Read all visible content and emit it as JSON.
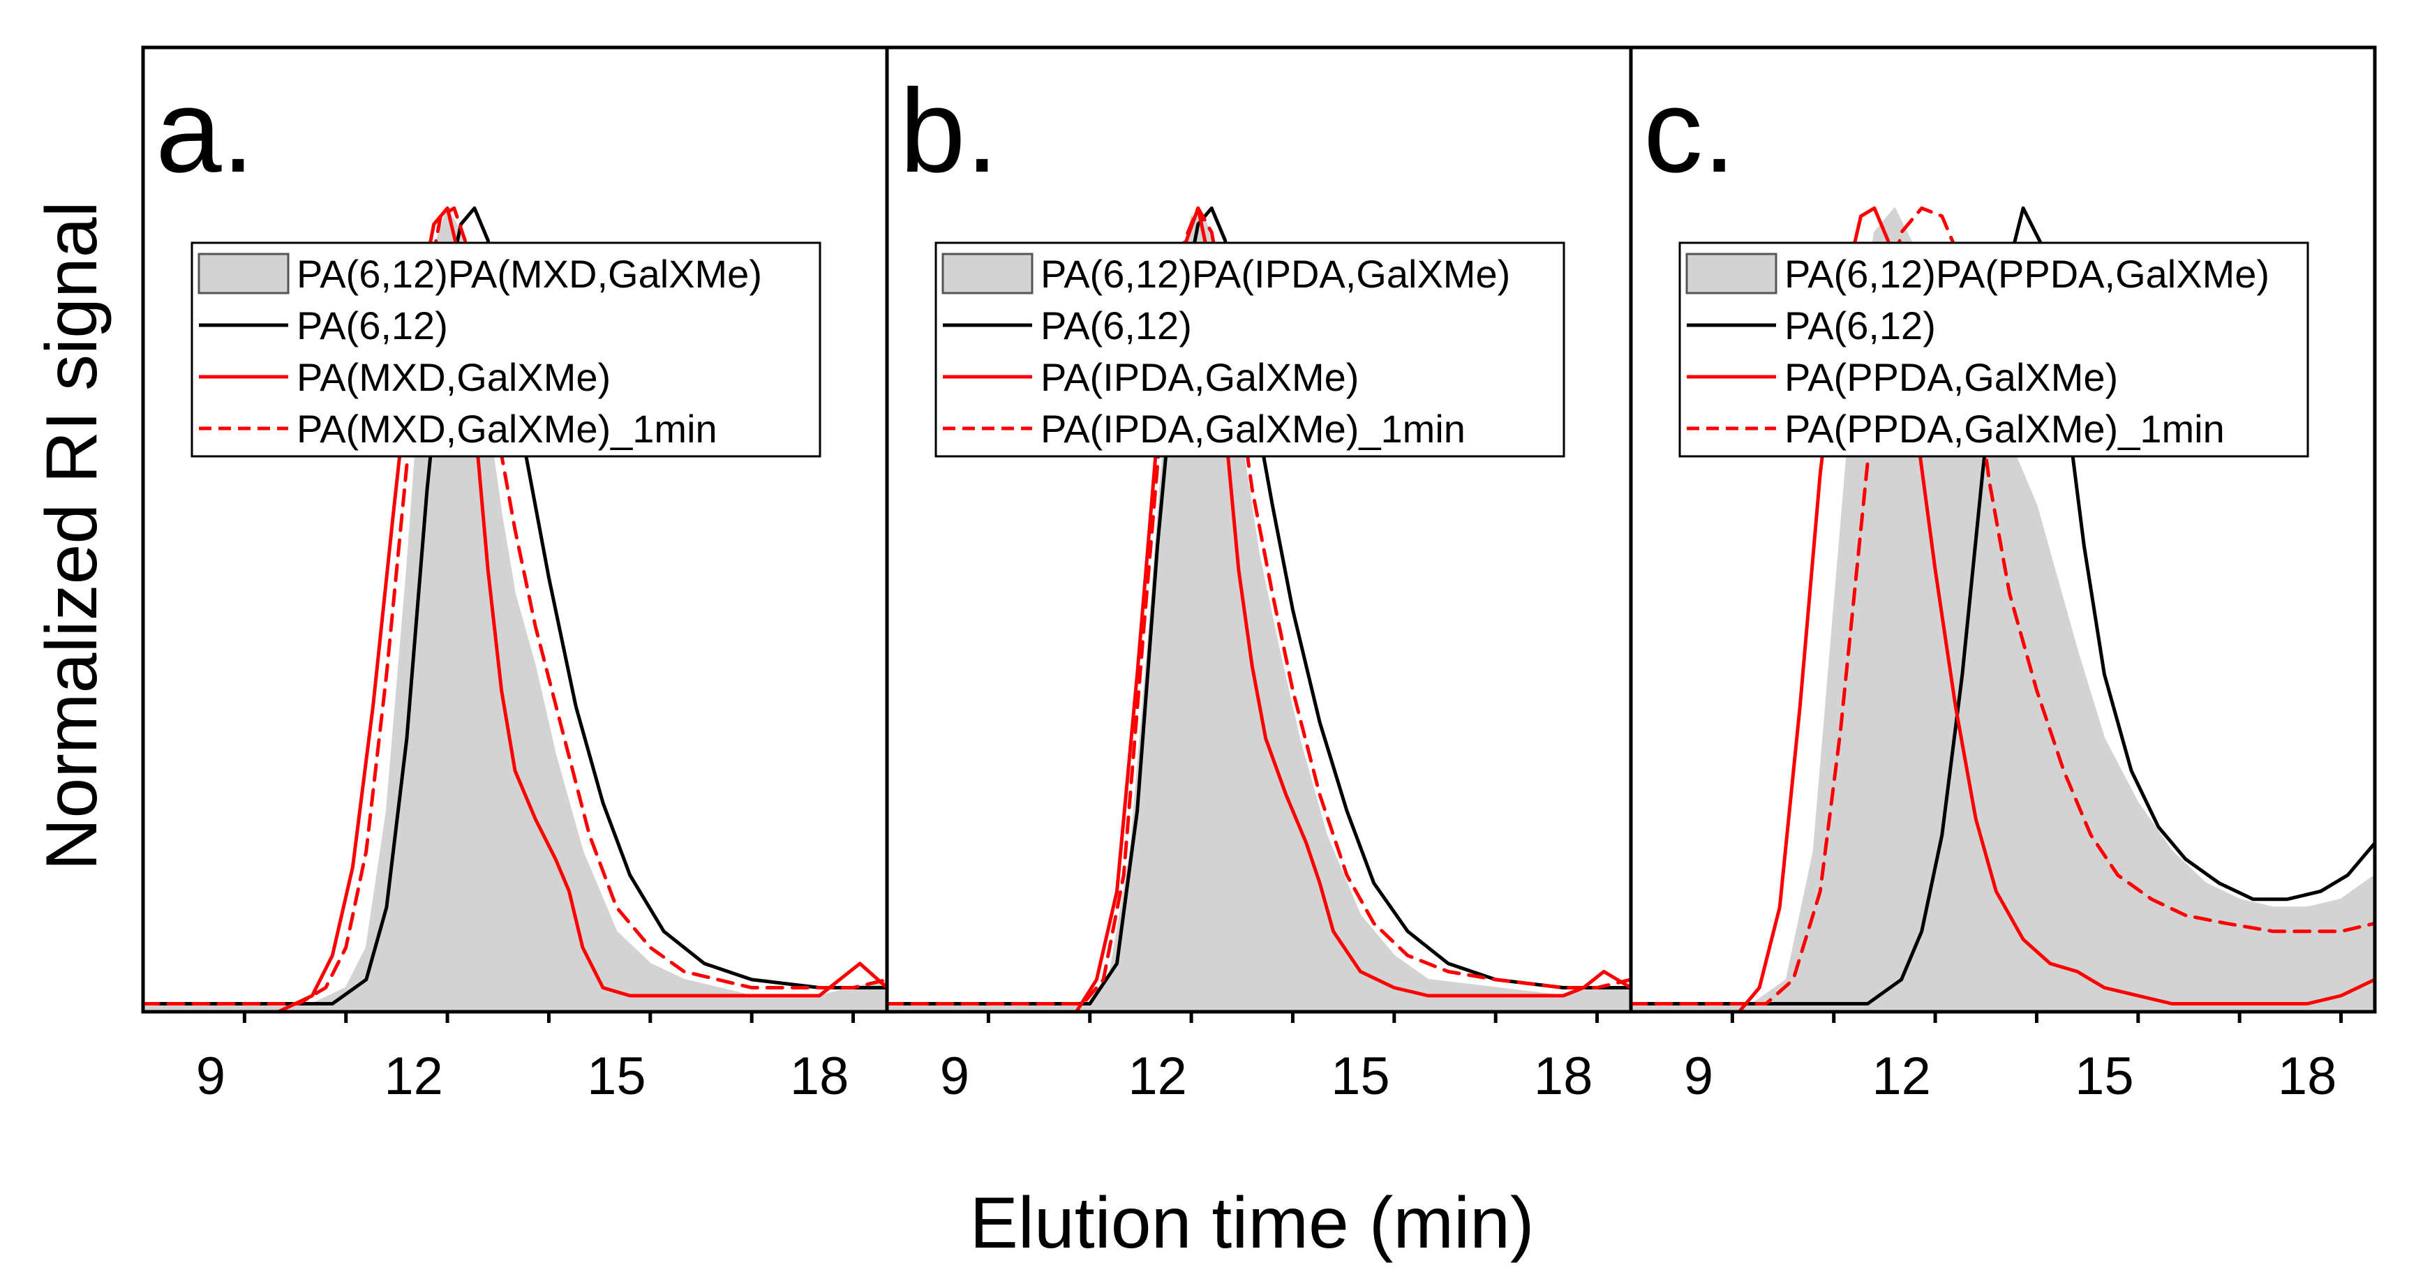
{
  "chart_data": [
    {
      "type": "line",
      "panel_label": "a.",
      "xlabel": "Elution time (min)",
      "ylabel": "Normalized RI signal",
      "xlim": [
        8,
        19
      ],
      "ylim": [
        0,
        1.2
      ],
      "xticks": [
        9,
        12,
        15,
        18
      ],
      "xtick_labels": [
        "9",
        "12",
        "15",
        "18"
      ],
      "legend_position": "upper-center",
      "legend": [
        "PA(6,12)PA(MXD,GalXMe)",
        "PA(6,12)",
        "PA(MXD,GalXMe)",
        "PA(MXD,GalXMe)_1min"
      ],
      "series": [
        {
          "name": "PA(6,12)PA(MXD,GalXMe)",
          "style": "filled-gray",
          "x": [
            8.0,
            10.5,
            11.0,
            11.3,
            11.6,
            11.9,
            12.1,
            12.3,
            12.5,
            12.7,
            12.9,
            13.1,
            13.3,
            13.5,
            13.8,
            14.1,
            14.5,
            15.0,
            15.5,
            16.0,
            17.0,
            18.0,
            18.5,
            19.0
          ],
          "values": [
            0.01,
            0.01,
            0.03,
            0.08,
            0.25,
            0.55,
            0.78,
            0.95,
            1.0,
            0.97,
            0.88,
            0.74,
            0.62,
            0.52,
            0.43,
            0.32,
            0.2,
            0.1,
            0.06,
            0.04,
            0.02,
            0.02,
            0.03,
            0.04
          ]
        },
        {
          "name": "PA(6,12)",
          "style": "black-solid",
          "x": [
            8.0,
            10.8,
            11.3,
            11.6,
            11.9,
            12.2,
            12.5,
            12.7,
            12.9,
            13.1,
            13.3,
            13.6,
            14.0,
            14.4,
            14.8,
            15.2,
            15.7,
            16.3,
            17.0,
            18.0,
            18.5,
            19.0
          ],
          "values": [
            0.01,
            0.01,
            0.04,
            0.13,
            0.34,
            0.65,
            0.9,
            0.98,
            1.0,
            0.96,
            0.87,
            0.72,
            0.54,
            0.38,
            0.26,
            0.17,
            0.1,
            0.06,
            0.04,
            0.03,
            0.03,
            0.03
          ]
        },
        {
          "name": "PA(MXD,GalXMe)",
          "style": "red-solid",
          "x": [
            8.0,
            10.0,
            10.5,
            10.8,
            11.1,
            11.4,
            11.7,
            12.0,
            12.3,
            12.5,
            12.7,
            12.9,
            13.1,
            13.3,
            13.5,
            13.8,
            14.1,
            14.3,
            14.5,
            14.8,
            15.2,
            16.0,
            17.0,
            18.0,
            18.3,
            18.6,
            19.0
          ],
          "values": [
            0.0,
            0.0,
            0.02,
            0.07,
            0.18,
            0.38,
            0.62,
            0.85,
            0.98,
            1.0,
            0.93,
            0.74,
            0.55,
            0.4,
            0.3,
            0.24,
            0.19,
            0.15,
            0.08,
            0.03,
            0.02,
            0.02,
            0.02,
            0.02,
            0.04,
            0.06,
            0.03
          ]
        },
        {
          "name": "PA(MXD,GalXMe)_1min",
          "style": "red-dashed",
          "x": [
            8.0,
            10.3,
            10.7,
            11.0,
            11.3,
            11.6,
            11.9,
            12.2,
            12.4,
            12.6,
            12.8,
            13.0,
            13.2,
            13.5,
            13.8,
            14.2,
            14.6,
            15.0,
            15.5,
            16.0,
            17.0,
            18.0,
            18.5,
            19.0
          ],
          "values": [
            0.01,
            0.01,
            0.03,
            0.08,
            0.2,
            0.42,
            0.68,
            0.9,
            0.99,
            1.0,
            0.95,
            0.85,
            0.74,
            0.6,
            0.48,
            0.35,
            0.22,
            0.13,
            0.08,
            0.05,
            0.03,
            0.03,
            0.03,
            0.04
          ]
        }
      ]
    },
    {
      "type": "line",
      "panel_label": "b.",
      "xlabel": "Elution time (min)",
      "ylabel": "Normalized RI signal",
      "xlim": [
        8,
        19
      ],
      "ylim": [
        0,
        1.2
      ],
      "xticks": [
        9,
        12,
        15,
        18
      ],
      "xtick_labels": [
        "9",
        "12",
        "15",
        "18"
      ],
      "legend_position": "upper-center",
      "legend": [
        "PA(6,12)PA(IPDA,GalXMe)",
        "PA(6,12)",
        "PA(IPDA,GalXMe)",
        "PA(IPDA,GalXMe)_1min"
      ],
      "series": [
        {
          "name": "PA(6,12)PA(IPDA,GalXMe)",
          "style": "filled-gray",
          "x": [
            8.0,
            11.0,
            11.3,
            11.6,
            11.9,
            12.1,
            12.3,
            12.5,
            12.7,
            12.9,
            13.1,
            13.3,
            13.5,
            13.8,
            14.1,
            14.5,
            15.0,
            15.5,
            16.0,
            17.0,
            18.0,
            18.5,
            19.0
          ],
          "values": [
            0.01,
            0.01,
            0.05,
            0.2,
            0.5,
            0.72,
            0.9,
            0.99,
            0.99,
            0.92,
            0.8,
            0.68,
            0.57,
            0.45,
            0.34,
            0.22,
            0.12,
            0.07,
            0.04,
            0.03,
            0.02,
            0.03,
            0.03
          ]
        },
        {
          "name": "PA(6,12)",
          "style": "black-solid",
          "x": [
            8.0,
            11.0,
            11.4,
            11.7,
            12.0,
            12.3,
            12.6,
            12.8,
            13.0,
            13.2,
            13.4,
            13.7,
            14.0,
            14.4,
            14.8,
            15.2,
            15.7,
            16.3,
            17.0,
            18.0,
            18.5,
            19.0
          ],
          "values": [
            0.01,
            0.01,
            0.06,
            0.25,
            0.58,
            0.85,
            0.98,
            1.0,
            0.96,
            0.88,
            0.77,
            0.63,
            0.5,
            0.36,
            0.25,
            0.16,
            0.1,
            0.06,
            0.04,
            0.03,
            0.03,
            0.03
          ]
        },
        {
          "name": "PA(IPDA,GalXMe)",
          "style": "red-solid",
          "x": [
            8.0,
            10.8,
            11.1,
            11.4,
            11.7,
            12.0,
            12.3,
            12.6,
            12.8,
            13.0,
            13.2,
            13.4,
            13.6,
            13.9,
            14.2,
            14.4,
            14.6,
            15.0,
            15.5,
            16.0,
            17.0,
            18.0,
            18.3,
            18.6,
            19.0
          ],
          "values": [
            0.0,
            0.0,
            0.04,
            0.15,
            0.42,
            0.72,
            0.93,
            1.0,
            0.92,
            0.73,
            0.55,
            0.43,
            0.34,
            0.27,
            0.21,
            0.16,
            0.1,
            0.05,
            0.03,
            0.02,
            0.02,
            0.02,
            0.03,
            0.05,
            0.03
          ]
        },
        {
          "name": "PA(IPDA,GalXMe)_1min",
          "style": "red-dashed",
          "x": [
            8.0,
            10.9,
            11.2,
            11.5,
            11.8,
            12.1,
            12.4,
            12.6,
            12.8,
            13.0,
            13.2,
            13.4,
            13.7,
            14.0,
            14.4,
            14.8,
            15.2,
            15.7,
            16.3,
            17.0,
            18.0,
            18.5,
            19.0
          ],
          "values": [
            0.01,
            0.01,
            0.04,
            0.17,
            0.48,
            0.78,
            0.96,
            1.0,
            0.97,
            0.88,
            0.77,
            0.65,
            0.52,
            0.4,
            0.27,
            0.17,
            0.11,
            0.07,
            0.05,
            0.04,
            0.03,
            0.03,
            0.04
          ]
        }
      ]
    },
    {
      "type": "line",
      "panel_label": "c.",
      "xlabel": "Elution time (min)",
      "ylabel": "Normalized RI signal",
      "xlim": [
        8,
        19
      ],
      "ylim": [
        0,
        1.2
      ],
      "xticks": [
        9,
        12,
        15,
        18
      ],
      "xtick_labels": [
        "9",
        "12",
        "15",
        "18"
      ],
      "legend_position": "upper-center",
      "legend": [
        "PA(6,12)PA(PPDA,GalXMe)",
        "PA(6,12)",
        "PA(PPDA,GalXMe)",
        "PA(PPDA,GalXMe)_1min"
      ],
      "series": [
        {
          "name": "PA(6,12)PA(PPDA,GalXMe)",
          "style": "filled-gray",
          "x": [
            8.0,
            9.8,
            10.3,
            10.7,
            11.0,
            11.3,
            11.6,
            11.9,
            12.2,
            12.5,
            12.8,
            13.1,
            13.4,
            13.7,
            14.0,
            14.3,
            14.6,
            15.0,
            15.5,
            16.0,
            16.5,
            17.0,
            17.5,
            18.0,
            18.5,
            19.0
          ],
          "values": [
            0.01,
            0.01,
            0.04,
            0.2,
            0.5,
            0.8,
            0.97,
            1.0,
            0.95,
            0.86,
            0.79,
            0.75,
            0.72,
            0.69,
            0.63,
            0.54,
            0.45,
            0.34,
            0.26,
            0.2,
            0.16,
            0.14,
            0.13,
            0.13,
            0.14,
            0.17
          ]
        },
        {
          "name": "PA(6,12)",
          "style": "black-solid",
          "x": [
            8.0,
            11.5,
            12.0,
            12.3,
            12.6,
            12.9,
            13.2,
            13.5,
            13.8,
            14.1,
            14.4,
            14.7,
            15.0,
            15.4,
            15.8,
            16.2,
            16.7,
            17.2,
            17.7,
            18.2,
            18.6,
            19.0
          ],
          "values": [
            0.01,
            0.01,
            0.04,
            0.1,
            0.22,
            0.42,
            0.67,
            0.9,
            1.0,
            0.95,
            0.78,
            0.58,
            0.42,
            0.3,
            0.23,
            0.19,
            0.16,
            0.14,
            0.14,
            0.15,
            0.17,
            0.21
          ]
        },
        {
          "name": "PA(PPDA,GalXMe)",
          "style": "red-solid",
          "x": [
            8.0,
            9.6,
            9.9,
            10.2,
            10.5,
            10.8,
            11.1,
            11.4,
            11.6,
            11.8,
            12.0,
            12.2,
            12.5,
            12.8,
            13.1,
            13.4,
            13.8,
            14.2,
            14.6,
            15.0,
            15.5,
            16.0,
            16.5,
            17.0,
            18.0,
            18.5,
            19.0
          ],
          "values": [
            0.0,
            0.0,
            0.03,
            0.13,
            0.38,
            0.67,
            0.88,
            0.99,
            1.0,
            0.96,
            0.87,
            0.74,
            0.55,
            0.38,
            0.24,
            0.15,
            0.09,
            0.06,
            0.05,
            0.03,
            0.02,
            0.01,
            0.01,
            0.01,
            0.01,
            0.02,
            0.04
          ]
        },
        {
          "name": "PA(PPDA,GalXMe)_1min",
          "style": "red-dashed",
          "x": [
            8.0,
            10.0,
            10.4,
            10.8,
            11.1,
            11.4,
            11.7,
            12.0,
            12.3,
            12.6,
            12.8,
            13.0,
            13.3,
            13.6,
            14.0,
            14.4,
            14.8,
            15.2,
            15.7,
            16.2,
            16.8,
            17.5,
            18.0,
            18.5,
            19.0
          ],
          "values": [
            0.01,
            0.01,
            0.04,
            0.15,
            0.35,
            0.6,
            0.85,
            0.97,
            1.0,
            0.99,
            0.95,
            0.85,
            0.66,
            0.52,
            0.4,
            0.3,
            0.22,
            0.17,
            0.14,
            0.12,
            0.11,
            0.1,
            0.1,
            0.1,
            0.11
          ]
        }
      ]
    }
  ]
}
